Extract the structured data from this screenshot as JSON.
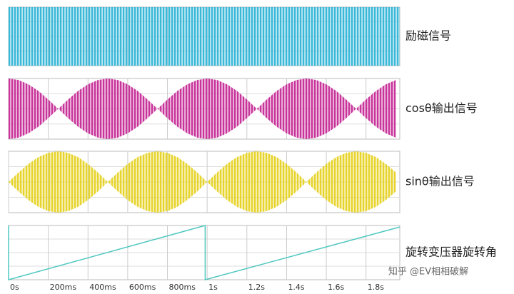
{
  "chart_data": [
    {
      "type": "area",
      "title": "励磁信号",
      "color": "#3ab8d8",
      "xlim": [
        0,
        1.97
      ],
      "ylim": [
        -1,
        1
      ],
      "grid": true,
      "x": [
        0,
        1.97
      ],
      "values": [
        1,
        1
      ]
    },
    {
      "type": "area",
      "title": "cosθ输出信号",
      "color": "#c8349a",
      "xlim": [
        0,
        1.97
      ],
      "ylim": [
        -1,
        1
      ],
      "grid": true,
      "x": [
        0,
        0.05,
        0.1,
        0.15,
        0.2,
        0.25,
        0.3,
        0.35,
        0.4,
        0.45,
        0.5,
        0.55,
        0.6,
        0.65,
        0.7,
        0.75,
        0.8,
        0.85,
        0.9,
        0.95,
        1,
        1.05,
        1.1,
        1.15,
        1.2,
        1.25,
        1.3,
        1.35,
        1.4,
        1.45,
        1.5,
        1.55,
        1.6,
        1.65,
        1.7,
        1.75,
        1.8,
        1.85,
        1.9,
        1.95
      ],
      "values": [
        1,
        0.95,
        0.81,
        0.59,
        0.31,
        0,
        0.31,
        0.59,
        0.81,
        0.95,
        1,
        0.95,
        0.81,
        0.59,
        0.31,
        0,
        0.31,
        0.59,
        0.81,
        0.95,
        1,
        0.95,
        0.81,
        0.59,
        0.31,
        0,
        0.31,
        0.59,
        0.81,
        0.95,
        1,
        0.95,
        0.81,
        0.59,
        0.31,
        0,
        0.31,
        0.59,
        0.81,
        0.95
      ]
    },
    {
      "type": "area",
      "title": "sinθ输出信号",
      "color": "#e6d42c",
      "xlim": [
        0,
        1.97
      ],
      "ylim": [
        -1,
        1
      ],
      "grid": true,
      "x": [
        0,
        0.05,
        0.1,
        0.15,
        0.2,
        0.25,
        0.3,
        0.35,
        0.4,
        0.45,
        0.5,
        0.55,
        0.6,
        0.65,
        0.7,
        0.75,
        0.8,
        0.85,
        0.9,
        0.95,
        1,
        1.05,
        1.1,
        1.15,
        1.2,
        1.25,
        1.3,
        1.35,
        1.4,
        1.45,
        1.5,
        1.55,
        1.6,
        1.65,
        1.7,
        1.75,
        1.8,
        1.85,
        1.9,
        1.95
      ],
      "values": [
        0,
        0.31,
        0.59,
        0.81,
        0.95,
        1,
        0.95,
        0.81,
        0.59,
        0.31,
        0,
        0.31,
        0.59,
        0.81,
        0.95,
        1,
        0.95,
        0.81,
        0.59,
        0.31,
        0,
        0.31,
        0.59,
        0.81,
        0.95,
        1,
        0.95,
        0.81,
        0.59,
        0.31,
        0,
        0.31,
        0.59,
        0.81,
        0.95,
        1,
        0.95,
        0.81,
        0.59,
        0.31
      ]
    },
    {
      "type": "line",
      "title": "旋转变压器旋转角",
      "color": "#4fc8c0",
      "xlim": [
        0,
        1.97
      ],
      "ylim": [
        0,
        360
      ],
      "grid": true,
      "x": [
        0,
        0,
        0.99,
        0.99,
        1.97
      ],
      "values": [
        360,
        0,
        360,
        0,
        350
      ],
      "xticks": [
        {
          "value": 0,
          "label": "0s"
        },
        {
          "value": 0.2,
          "label": "200ms"
        },
        {
          "value": 0.4,
          "label": "400ms"
        },
        {
          "value": 0.6,
          "label": "600ms"
        },
        {
          "value": 0.8,
          "label": "800ms"
        },
        {
          "value": 1,
          "label": "1s"
        },
        {
          "value": 1.2,
          "label": "1.2s"
        },
        {
          "value": 1.4,
          "label": "1.4s"
        },
        {
          "value": 1.6,
          "label": "1.6s"
        },
        {
          "value": 1.8,
          "label": "1.8s"
        }
      ]
    }
  ],
  "watermark": "知乎 @EV相相破解"
}
